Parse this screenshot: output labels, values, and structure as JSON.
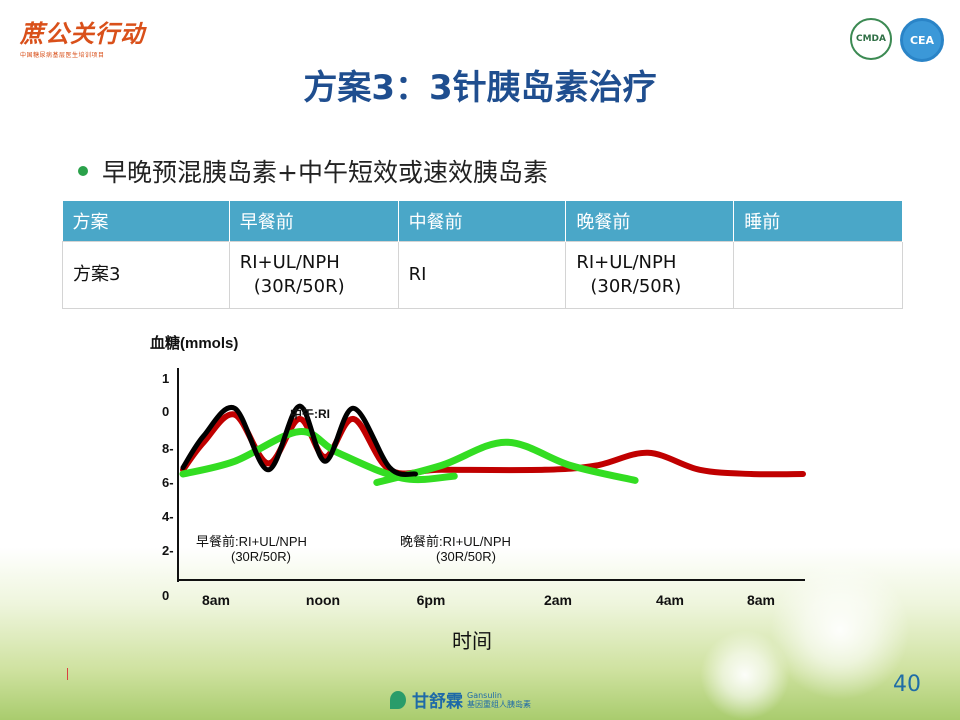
{
  "header": {
    "brand": "蔗公关行动",
    "brand_sub": "中国糖尿病基层医生培训项目",
    "badge_left": "CMDA",
    "badge_right": "CEA"
  },
  "title": "方案3：3针胰岛素治疗",
  "bullet": "早晚预混胰岛素+中午短效或速效胰岛素",
  "table": {
    "headers": [
      "方案",
      "早餐前",
      "中餐前",
      "晚餐前",
      "睡前"
    ],
    "row": {
      "plan": "方案3",
      "breakfast_1": "RI+UL/NPH",
      "breakfast_2": "(30R/50R)",
      "lunch": "RI",
      "dinner_1": "RI+UL/NPH",
      "dinner_2": "(30R/50R)",
      "bedtime": ""
    }
  },
  "chart_data": {
    "type": "line",
    "ylabel": "血糖(mmols)",
    "xlabel": "时间",
    "ylim": [
      0,
      10
    ],
    "y_ticks": [
      "0",
      "2-",
      "4-",
      "6-",
      "8-",
      "0",
      "1"
    ],
    "x_ticks": [
      "8am",
      "noon",
      "6pm",
      "2am",
      "4am",
      "8am"
    ],
    "annotations": {
      "lunch": "中午:RI",
      "breakfast_1": "早餐前:RI+UL/NPH",
      "breakfast_2": "(30R/50R)",
      "dinner_1": "晚餐前:RI+UL/NPH",
      "dinner_2": "(30R/50R)"
    },
    "colors": {
      "glucose": "#c00000",
      "insulin": "#000000",
      "basal": "#33dd22"
    },
    "series": [
      {
        "key": "glucose",
        "x": [
          0,
          0.8,
          2,
          3.3,
          4.5,
          5.5,
          6.6,
          8,
          10,
          14,
          16,
          18,
          20,
          22,
          24
        ],
        "y": [
          5.2,
          6.5,
          7.8,
          5.5,
          7.6,
          5.8,
          7.6,
          5.2,
          5.2,
          5.2,
          5.4,
          6.0,
          5.2,
          5.0,
          5.0
        ]
      },
      {
        "key": "insulin",
        "x": [
          0,
          0.8,
          2,
          3.3,
          4.5,
          5.5,
          6.6,
          8,
          9
        ],
        "y": [
          5.3,
          6.8,
          8.1,
          5.2,
          8.2,
          5.6,
          8.1,
          5.3,
          5.0
        ]
      },
      {
        "key": "basal",
        "x": [
          0,
          2,
          4.5,
          6,
          8.5,
          10.5
        ],
        "y": [
          5.0,
          5.6,
          7.0,
          6.0,
          4.8,
          4.9
        ]
      },
      {
        "key": "basal",
        "x": [
          7.5,
          10,
          12.5,
          15,
          17.5
        ],
        "y": [
          4.6,
          5.4,
          6.5,
          5.4,
          4.7
        ]
      }
    ]
  },
  "page_number": "40",
  "footer": {
    "brand_cn": "甘舒霖",
    "brand_en": "Gansulin",
    "brand_sub": "基因重组人胰岛素"
  }
}
